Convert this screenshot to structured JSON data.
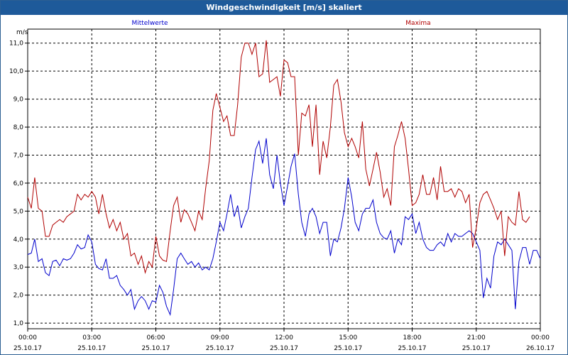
{
  "window": {
    "title": "Windgeschwindigkeit [m/s] skaliert"
  },
  "chart_data": {
    "type": "line",
    "title": "Windgeschwindigkeit [m/s] skaliert",
    "ylabel": "m/s",
    "ylim": [
      0.8,
      11.5
    ],
    "yticks": [
      "1,0",
      "2,0",
      "3,0",
      "4,0",
      "5,0",
      "6,0",
      "7,0",
      "8,0",
      "9,0",
      "10,0",
      "11,0"
    ],
    "ytick_values": [
      1,
      2,
      3,
      4,
      5,
      6,
      7,
      8,
      9,
      10,
      11
    ],
    "xlim": [
      0,
      24
    ],
    "xticks": [
      {
        "time": "00:00",
        "date": "25.10.17",
        "hour": 0
      },
      {
        "time": "03:00",
        "date": "25.10.17",
        "hour": 3
      },
      {
        "time": "06:00",
        "date": "25.10.17",
        "hour": 6
      },
      {
        "time": "09:00",
        "date": "25.10.17",
        "hour": 9
      },
      {
        "time": "12:00",
        "date": "25.10.17",
        "hour": 12
      },
      {
        "time": "15:00",
        "date": "25.10.17",
        "hour": 15
      },
      {
        "time": "18:00",
        "date": "25.10.17",
        "hour": 18
      },
      {
        "time": "21:00",
        "date": "25.10.17",
        "hour": 21
      },
      {
        "time": "00:00",
        "date": "26.10.17",
        "hour": 24
      }
    ],
    "grid": true,
    "legend": "top",
    "series": [
      {
        "name": "Mittelwerte",
        "color": "#0000cc",
        "points": [
          [
            0.0,
            3.45
          ],
          [
            0.17,
            3.5
          ],
          [
            0.33,
            4.0
          ],
          [
            0.5,
            3.2
          ],
          [
            0.67,
            3.3
          ],
          [
            0.83,
            2.8
          ],
          [
            1.0,
            2.7
          ],
          [
            1.17,
            3.2
          ],
          [
            1.33,
            3.25
          ],
          [
            1.5,
            3.05
          ],
          [
            1.67,
            3.3
          ],
          [
            1.83,
            3.25
          ],
          [
            2.0,
            3.3
          ],
          [
            2.17,
            3.5
          ],
          [
            2.33,
            3.8
          ],
          [
            2.5,
            3.65
          ],
          [
            2.67,
            3.7
          ],
          [
            2.83,
            4.15
          ],
          [
            3.0,
            3.9
          ],
          [
            3.17,
            3.1
          ],
          [
            3.33,
            2.95
          ],
          [
            3.5,
            2.9
          ],
          [
            3.67,
            3.3
          ],
          [
            3.83,
            2.6
          ],
          [
            4.0,
            2.6
          ],
          [
            4.17,
            2.7
          ],
          [
            4.33,
            2.35
          ],
          [
            4.5,
            2.2
          ],
          [
            4.67,
            2.0
          ],
          [
            4.83,
            2.2
          ],
          [
            5.0,
            1.5
          ],
          [
            5.17,
            1.8
          ],
          [
            5.33,
            1.95
          ],
          [
            5.5,
            1.8
          ],
          [
            5.67,
            1.5
          ],
          [
            5.83,
            1.8
          ],
          [
            6.0,
            1.75
          ],
          [
            6.17,
            2.35
          ],
          [
            6.33,
            2.1
          ],
          [
            6.5,
            1.6
          ],
          [
            6.67,
            1.3
          ],
          [
            6.83,
            2.2
          ],
          [
            7.0,
            3.3
          ],
          [
            7.17,
            3.5
          ],
          [
            7.33,
            3.3
          ],
          [
            7.5,
            3.1
          ],
          [
            7.67,
            3.2
          ],
          [
            7.83,
            3.0
          ],
          [
            8.0,
            3.15
          ],
          [
            8.17,
            2.9
          ],
          [
            8.33,
            3.0
          ],
          [
            8.5,
            2.9
          ],
          [
            8.67,
            3.3
          ],
          [
            8.83,
            3.9
          ],
          [
            9.0,
            4.6
          ],
          [
            9.17,
            4.3
          ],
          [
            9.33,
            4.9
          ],
          [
            9.5,
            5.6
          ],
          [
            9.67,
            4.8
          ],
          [
            9.83,
            5.2
          ],
          [
            10.0,
            4.4
          ],
          [
            10.17,
            4.8
          ],
          [
            10.33,
            5.1
          ],
          [
            10.5,
            6.2
          ],
          [
            10.67,
            7.2
          ],
          [
            10.83,
            7.5
          ],
          [
            11.0,
            6.7
          ],
          [
            11.17,
            7.6
          ],
          [
            11.33,
            6.3
          ],
          [
            11.5,
            5.8
          ],
          [
            11.67,
            7.0
          ],
          [
            11.83,
            6.0
          ],
          [
            12.0,
            5.2
          ],
          [
            12.17,
            5.9
          ],
          [
            12.33,
            6.6
          ],
          [
            12.5,
            7.05
          ],
          [
            12.67,
            5.6
          ],
          [
            12.83,
            4.6
          ],
          [
            13.0,
            4.1
          ],
          [
            13.17,
            4.9
          ],
          [
            13.33,
            5.1
          ],
          [
            13.5,
            4.8
          ],
          [
            13.67,
            4.2
          ],
          [
            13.83,
            4.6
          ],
          [
            14.0,
            4.6
          ],
          [
            14.17,
            3.4
          ],
          [
            14.33,
            4.0
          ],
          [
            14.5,
            3.9
          ],
          [
            14.67,
            4.4
          ],
          [
            14.83,
            5.1
          ],
          [
            15.0,
            6.2
          ],
          [
            15.17,
            5.5
          ],
          [
            15.33,
            4.6
          ],
          [
            15.5,
            4.3
          ],
          [
            15.67,
            4.9
          ],
          [
            15.83,
            5.1
          ],
          [
            16.0,
            5.1
          ],
          [
            16.17,
            5.4
          ],
          [
            16.33,
            4.6
          ],
          [
            16.5,
            4.2
          ],
          [
            16.67,
            4.05
          ],
          [
            16.83,
            4.0
          ],
          [
            17.0,
            4.3
          ],
          [
            17.17,
            3.5
          ],
          [
            17.33,
            4.0
          ],
          [
            17.5,
            3.8
          ],
          [
            17.67,
            4.8
          ],
          [
            17.83,
            4.7
          ],
          [
            18.0,
            4.9
          ],
          [
            18.17,
            4.2
          ],
          [
            18.33,
            4.6
          ],
          [
            18.5,
            4.0
          ],
          [
            18.67,
            3.7
          ],
          [
            18.83,
            3.6
          ],
          [
            19.0,
            3.6
          ],
          [
            19.17,
            3.8
          ],
          [
            19.33,
            3.9
          ],
          [
            19.5,
            3.75
          ],
          [
            19.67,
            4.2
          ],
          [
            19.83,
            3.9
          ],
          [
            20.0,
            4.2
          ],
          [
            20.17,
            4.1
          ],
          [
            20.33,
            4.1
          ],
          [
            20.5,
            4.2
          ],
          [
            20.67,
            4.3
          ],
          [
            20.83,
            4.2
          ],
          [
            21.0,
            3.9
          ],
          [
            21.17,
            3.6
          ],
          [
            21.33,
            1.9
          ],
          [
            21.5,
            2.6
          ],
          [
            21.67,
            2.25
          ],
          [
            21.83,
            3.4
          ],
          [
            22.0,
            3.9
          ],
          [
            22.17,
            3.8
          ],
          [
            22.33,
            4.0
          ],
          [
            22.5,
            3.8
          ],
          [
            22.67,
            3.6
          ],
          [
            22.83,
            1.5
          ],
          [
            23.0,
            3.2
          ],
          [
            23.17,
            3.7
          ],
          [
            23.33,
            3.7
          ],
          [
            23.5,
            3.1
          ],
          [
            23.67,
            3.6
          ],
          [
            23.83,
            3.6
          ],
          [
            24.0,
            3.3
          ]
        ]
      },
      {
        "name": "Maxima",
        "color": "#b00000",
        "points": [
          [
            0.0,
            5.5
          ],
          [
            0.17,
            5.1
          ],
          [
            0.33,
            6.2
          ],
          [
            0.5,
            5.1
          ],
          [
            0.67,
            5.0
          ],
          [
            0.83,
            4.1
          ],
          [
            1.0,
            4.1
          ],
          [
            1.17,
            4.5
          ],
          [
            1.33,
            4.6
          ],
          [
            1.5,
            4.7
          ],
          [
            1.67,
            4.6
          ],
          [
            1.83,
            4.8
          ],
          [
            2.0,
            4.9
          ],
          [
            2.17,
            5.0
          ],
          [
            2.33,
            5.6
          ],
          [
            2.5,
            5.4
          ],
          [
            2.67,
            5.6
          ],
          [
            2.83,
            5.5
          ],
          [
            3.0,
            5.7
          ],
          [
            3.17,
            5.5
          ],
          [
            3.33,
            4.9
          ],
          [
            3.5,
            5.6
          ],
          [
            3.67,
            4.9
          ],
          [
            3.83,
            4.4
          ],
          [
            4.0,
            4.7
          ],
          [
            4.17,
            4.3
          ],
          [
            4.33,
            4.6
          ],
          [
            4.5,
            4.0
          ],
          [
            4.67,
            4.2
          ],
          [
            4.83,
            3.4
          ],
          [
            5.0,
            3.5
          ],
          [
            5.17,
            3.1
          ],
          [
            5.33,
            3.4
          ],
          [
            5.5,
            2.8
          ],
          [
            5.67,
            3.2
          ],
          [
            5.83,
            3.0
          ],
          [
            6.0,
            4.1
          ],
          [
            6.17,
            3.4
          ],
          [
            6.33,
            3.25
          ],
          [
            6.5,
            3.2
          ],
          [
            6.67,
            4.3
          ],
          [
            6.83,
            5.2
          ],
          [
            7.0,
            5.5
          ],
          [
            7.17,
            4.6
          ],
          [
            7.33,
            5.05
          ],
          [
            7.5,
            4.9
          ],
          [
            7.67,
            4.6
          ],
          [
            7.83,
            4.3
          ],
          [
            8.0,
            5.0
          ],
          [
            8.17,
            4.7
          ],
          [
            8.33,
            5.8
          ],
          [
            8.5,
            6.8
          ],
          [
            8.67,
            8.6
          ],
          [
            8.83,
            9.2
          ],
          [
            9.0,
            8.7
          ],
          [
            9.17,
            8.2
          ],
          [
            9.33,
            8.4
          ],
          [
            9.5,
            7.7
          ],
          [
            9.67,
            7.7
          ],
          [
            9.83,
            8.8
          ],
          [
            10.0,
            10.5
          ],
          [
            10.17,
            11.0
          ],
          [
            10.33,
            11.0
          ],
          [
            10.5,
            10.6
          ],
          [
            10.67,
            11.0
          ],
          [
            10.83,
            9.8
          ],
          [
            11.0,
            9.9
          ],
          [
            11.17,
            11.1
          ],
          [
            11.33,
            9.6
          ],
          [
            11.5,
            9.7
          ],
          [
            11.67,
            9.8
          ],
          [
            11.83,
            9.1
          ],
          [
            12.0,
            10.4
          ],
          [
            12.17,
            10.3
          ],
          [
            12.33,
            9.8
          ],
          [
            12.5,
            9.8
          ],
          [
            12.67,
            7.0
          ],
          [
            12.83,
            8.5
          ],
          [
            13.0,
            8.4
          ],
          [
            13.17,
            8.8
          ],
          [
            13.33,
            7.3
          ],
          [
            13.5,
            8.8
          ],
          [
            13.67,
            6.3
          ],
          [
            13.83,
            7.5
          ],
          [
            14.0,
            6.9
          ],
          [
            14.17,
            8.0
          ],
          [
            14.33,
            9.5
          ],
          [
            14.5,
            9.7
          ],
          [
            14.67,
            8.9
          ],
          [
            14.83,
            7.8
          ],
          [
            15.0,
            7.3
          ],
          [
            15.17,
            7.6
          ],
          [
            15.33,
            7.3
          ],
          [
            15.5,
            6.9
          ],
          [
            15.67,
            8.2
          ],
          [
            15.83,
            6.5
          ],
          [
            16.0,
            5.9
          ],
          [
            16.17,
            6.5
          ],
          [
            16.33,
            7.1
          ],
          [
            16.5,
            6.4
          ],
          [
            16.67,
            5.5
          ],
          [
            16.83,
            5.8
          ],
          [
            17.0,
            5.2
          ],
          [
            17.17,
            7.3
          ],
          [
            17.33,
            7.7
          ],
          [
            17.5,
            8.2
          ],
          [
            17.67,
            7.6
          ],
          [
            17.83,
            6.5
          ],
          [
            18.0,
            5.2
          ],
          [
            18.17,
            5.3
          ],
          [
            18.33,
            5.6
          ],
          [
            18.5,
            6.3
          ],
          [
            18.67,
            5.6
          ],
          [
            18.83,
            5.6
          ],
          [
            19.0,
            6.2
          ],
          [
            19.17,
            5.4
          ],
          [
            19.33,
            6.6
          ],
          [
            19.5,
            5.7
          ],
          [
            19.67,
            5.7
          ],
          [
            19.83,
            5.8
          ],
          [
            20.0,
            5.5
          ],
          [
            20.17,
            5.8
          ],
          [
            20.33,
            5.7
          ],
          [
            20.5,
            5.3
          ],
          [
            20.67,
            5.6
          ],
          [
            20.83,
            3.7
          ],
          [
            21.0,
            4.4
          ],
          [
            21.17,
            5.3
          ],
          [
            21.33,
            5.6
          ],
          [
            21.5,
            5.7
          ],
          [
            21.67,
            5.4
          ],
          [
            21.83,
            5.1
          ],
          [
            22.0,
            4.7
          ],
          [
            22.17,
            5.0
          ],
          [
            22.33,
            3.4
          ],
          [
            22.5,
            4.8
          ],
          [
            22.67,
            4.6
          ],
          [
            22.83,
            4.5
          ],
          [
            23.0,
            5.7
          ],
          [
            23.17,
            4.7
          ],
          [
            23.33,
            4.6
          ],
          [
            23.5,
            4.8
          ]
        ]
      }
    ]
  }
}
